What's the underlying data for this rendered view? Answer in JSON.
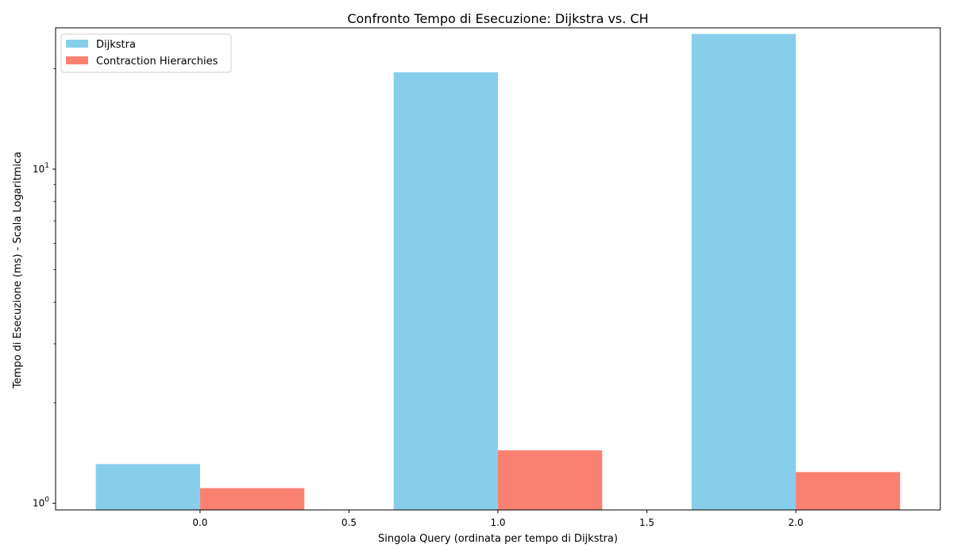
{
  "chart_data": {
    "type": "bar",
    "title": "Confronto Tempo di Esecuzione: Dijkstra vs. CH",
    "xlabel": "Singola Query (ordinata per tempo di Dijkstra)",
    "ylabel": "Tempo di Esecuzione (ms) - Scala Logaritmica",
    "y_scale": "log",
    "x_ticks": [
      "0.0",
      "0.5",
      "1.0",
      "1.5",
      "2.0"
    ],
    "x_tick_values": [
      0,
      0.5,
      1,
      1.5,
      2
    ],
    "xlim": [
      -0.485,
      2.485
    ],
    "ylim": [
      0.955,
      26.5
    ],
    "y_major_ticks": [
      1,
      10
    ],
    "y_major_tick_labels": [
      {
        "base": "10",
        "exp": "0"
      },
      {
        "base": "10",
        "exp": "1"
      }
    ],
    "y_minor_ticks": [
      2,
      3,
      4,
      5,
      6,
      7,
      8,
      9,
      20
    ],
    "x": [
      0,
      1,
      2
    ],
    "bar_width": 0.35,
    "series": [
      {
        "name": "Dijkstra",
        "color": "#87CEEB",
        "values": [
          1.31,
          19.5,
          25.4
        ]
      },
      {
        "name": "Contraction Hierarchies",
        "color": "#FA8072",
        "values": [
          1.11,
          1.44,
          1.24
        ]
      }
    ],
    "legend": "top-left",
    "grid": false
  }
}
